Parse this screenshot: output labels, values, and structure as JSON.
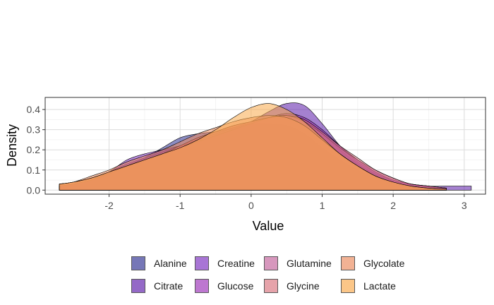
{
  "chart_data": {
    "type": "area",
    "subtype": "density",
    "xlabel": "Value",
    "ylabel": "Density",
    "xlim": [
      -2.9,
      3.3
    ],
    "ylim": [
      -0.02,
      0.46
    ],
    "x_ticks": [
      -2,
      -1,
      0,
      1,
      2,
      3
    ],
    "x_tick_labels": [
      "-2",
      "-1",
      "0",
      "1",
      "2",
      "3"
    ],
    "y_ticks": [
      0.0,
      0.1,
      0.2,
      0.3,
      0.4
    ],
    "y_tick_labels": [
      "0.0",
      "0.1",
      "0.2",
      "0.3",
      "0.4"
    ],
    "grid": true,
    "legend_position": "bottom",
    "fill_opacity": 0.55,
    "series": [
      {
        "name": "Alanine",
        "color": "#2d3091",
        "x": [
          -2.7,
          -2.5,
          -2.25,
          -2.0,
          -1.75,
          -1.5,
          -1.25,
          -1.0,
          -0.75,
          -0.5,
          -0.25,
          0.0,
          0.25,
          0.5,
          0.75,
          1.0,
          1.25,
          1.5,
          1.75,
          2.0,
          2.25,
          2.5,
          2.75
        ],
        "values": [
          0.02,
          0.03,
          0.05,
          0.08,
          0.12,
          0.16,
          0.21,
          0.26,
          0.28,
          0.29,
          0.31,
          0.33,
          0.33,
          0.32,
          0.28,
          0.21,
          0.15,
          0.1,
          0.06,
          0.04,
          0.02,
          0.01,
          0.005
        ]
      },
      {
        "name": "Citrate",
        "color": "#5b1aaa",
        "x": [
          -2.7,
          -2.5,
          -2.25,
          -2.0,
          -1.75,
          -1.5,
          -1.25,
          -1.0,
          -0.75,
          -0.5,
          -0.25,
          0.0,
          0.25,
          0.5,
          0.75,
          1.0,
          1.25,
          1.5,
          1.75,
          2.0,
          2.25,
          2.5,
          2.75,
          3.0,
          3.1
        ],
        "values": [
          0.02,
          0.03,
          0.05,
          0.09,
          0.13,
          0.16,
          0.19,
          0.22,
          0.25,
          0.28,
          0.31,
          0.34,
          0.39,
          0.43,
          0.42,
          0.33,
          0.22,
          0.14,
          0.09,
          0.05,
          0.03,
          0.02,
          0.02,
          0.02,
          0.02
        ]
      },
      {
        "name": "Creatine",
        "color": "#7b2cbf",
        "x": [
          -2.7,
          -2.5,
          -2.25,
          -2.0,
          -1.75,
          -1.5,
          -1.25,
          -1.0,
          -0.75,
          -0.5,
          -0.25,
          0.0,
          0.25,
          0.5,
          0.75,
          1.0,
          1.25,
          1.5,
          1.75,
          2.0,
          2.25,
          2.5,
          2.75
        ],
        "values": [
          0.02,
          0.03,
          0.05,
          0.09,
          0.15,
          0.18,
          0.2,
          0.22,
          0.24,
          0.27,
          0.3,
          0.33,
          0.36,
          0.37,
          0.35,
          0.28,
          0.2,
          0.13,
          0.08,
          0.05,
          0.03,
          0.02,
          0.01
        ]
      },
      {
        "name": "Glucose",
        "color": "#9b30b8",
        "x": [
          -2.7,
          -2.5,
          -2.25,
          -2.0,
          -1.75,
          -1.5,
          -1.25,
          -1.0,
          -0.75,
          -0.5,
          -0.25,
          0.0,
          0.25,
          0.5,
          0.75,
          1.0,
          1.25,
          1.5,
          1.75,
          2.0,
          2.25,
          2.5,
          2.75
        ],
        "values": [
          0.02,
          0.03,
          0.05,
          0.08,
          0.12,
          0.15,
          0.18,
          0.21,
          0.24,
          0.27,
          0.3,
          0.33,
          0.36,
          0.38,
          0.36,
          0.3,
          0.22,
          0.15,
          0.09,
          0.05,
          0.03,
          0.02,
          0.01
        ]
      },
      {
        "name": "Glutamine",
        "color": "#c2609a",
        "x": [
          -2.7,
          -2.5,
          -2.25,
          -2.0,
          -1.75,
          -1.5,
          -1.25,
          -1.0,
          -0.75,
          -0.5,
          -0.25,
          0.0,
          0.25,
          0.5,
          0.75,
          1.0,
          1.25,
          1.5,
          1.75,
          2.0,
          2.25,
          2.5,
          2.75
        ],
        "values": [
          0.03,
          0.04,
          0.06,
          0.09,
          0.12,
          0.15,
          0.18,
          0.22,
          0.26,
          0.29,
          0.32,
          0.34,
          0.36,
          0.37,
          0.34,
          0.28,
          0.21,
          0.15,
          0.1,
          0.06,
          0.03,
          0.02,
          0.01
        ]
      },
      {
        "name": "Glycine",
        "color": "#d9737e",
        "x": [
          -2.7,
          -2.5,
          -2.25,
          -2.0,
          -1.75,
          -1.5,
          -1.25,
          -1.0,
          -0.75,
          -0.5,
          -0.25,
          0.0,
          0.25,
          0.5,
          0.75,
          1.0,
          1.25,
          1.5,
          1.75,
          2.0,
          2.25,
          2.5,
          2.75
        ],
        "values": [
          0.03,
          0.04,
          0.06,
          0.09,
          0.12,
          0.15,
          0.18,
          0.22,
          0.26,
          0.29,
          0.32,
          0.34,
          0.36,
          0.37,
          0.35,
          0.29,
          0.22,
          0.16,
          0.1,
          0.06,
          0.03,
          0.02,
          0.01
        ]
      },
      {
        "name": "Glycolate",
        "color": "#ec8a5c",
        "x": [
          -2.7,
          -2.5,
          -2.25,
          -2.0,
          -1.75,
          -1.5,
          -1.25,
          -1.0,
          -0.75,
          -0.5,
          -0.25,
          0.0,
          0.25,
          0.5,
          0.75,
          1.0,
          1.25,
          1.5,
          1.75,
          2.0,
          2.25,
          2.5,
          2.75
        ],
        "values": [
          0.03,
          0.04,
          0.07,
          0.1,
          0.14,
          0.17,
          0.2,
          0.24,
          0.28,
          0.31,
          0.34,
          0.36,
          0.37,
          0.36,
          0.32,
          0.25,
          0.18,
          0.12,
          0.07,
          0.04,
          0.02,
          0.01,
          0.005
        ]
      },
      {
        "name": "Lactate",
        "color": "#f9a94a",
        "x": [
          -2.7,
          -2.5,
          -2.25,
          -2.0,
          -1.75,
          -1.5,
          -1.25,
          -1.0,
          -0.75,
          -0.5,
          -0.25,
          0.0,
          0.25,
          0.5,
          0.75,
          1.0,
          1.25,
          1.5,
          1.75,
          2.0,
          2.25,
          2.5,
          2.75
        ],
        "values": [
          0.03,
          0.04,
          0.06,
          0.09,
          0.12,
          0.15,
          0.18,
          0.21,
          0.25,
          0.3,
          0.36,
          0.41,
          0.43,
          0.4,
          0.34,
          0.26,
          0.18,
          0.12,
          0.07,
          0.04,
          0.02,
          0.01,
          0.005
        ]
      }
    ]
  }
}
